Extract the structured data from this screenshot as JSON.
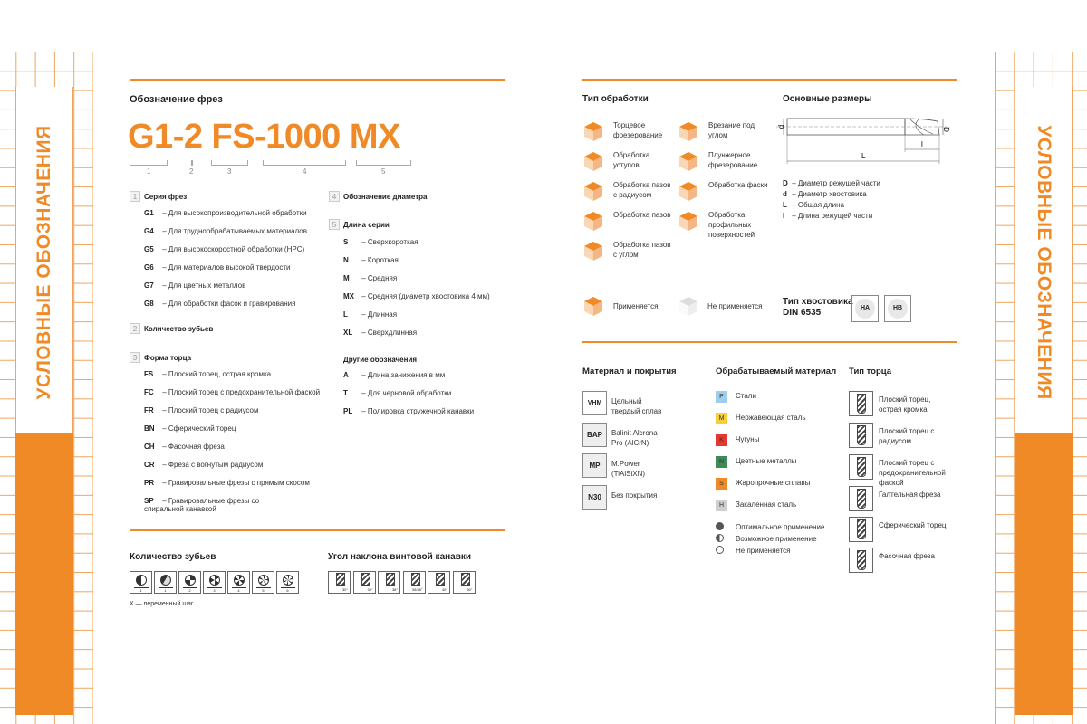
{
  "side_title": "УСЛОВНЫЕ ОБОЗНАЧЕНИЯ",
  "colors": {
    "accent": "#ef8a26",
    "P": "#9fcdec",
    "M": "#f7cf3b",
    "K": "#e23a2e",
    "N": "#3e8a58",
    "S": "#ef8a26",
    "H": "#cfcfcf"
  },
  "designation": {
    "title": "Обозначение фрез",
    "code": "G1-2 FS-1000 MX",
    "parts": [
      "1",
      "2",
      "3",
      "4",
      "5"
    ],
    "s1": {
      "num": "1",
      "title": "Серия фрез",
      "items": [
        [
          "G1",
          "Для высокопроизводительной обработки"
        ],
        [
          "G4",
          "Для труднообрабатываемых материалов"
        ],
        [
          "G5",
          "Для высокоскоростной обработки (HPC)"
        ],
        [
          "G6",
          "Для материалов высокой твердости"
        ],
        [
          "G7",
          "Для цветных металлов"
        ],
        [
          "G8",
          "Для обработки фасок и гравирования"
        ]
      ]
    },
    "s2": {
      "num": "2",
      "title": "Количество зубьев"
    },
    "s3": {
      "num": "3",
      "title": "Форма торца",
      "items": [
        [
          "FS",
          "Плоский торец, острая кромка"
        ],
        [
          "FC",
          "Плоский торец с предохранительной фаской"
        ],
        [
          "FR",
          "Плоский торец с радиусом"
        ],
        [
          "BN",
          "Сферический торец"
        ],
        [
          "CH",
          "Фасочная фреза"
        ],
        [
          "CR",
          "Фреза с вогнутым радиусом"
        ],
        [
          "PR",
          "Гравировальные фрезы с прямым скосом"
        ],
        [
          "SP",
          "Гравировальные фрезы со спиральной канавкой"
        ]
      ]
    },
    "s4": {
      "num": "4",
      "title": "Обозначение диаметра"
    },
    "s5": {
      "num": "5",
      "title": "Длина серии",
      "items": [
        [
          "S",
          "Сверхкороткая"
        ],
        [
          "N",
          "Короткая"
        ],
        [
          "M",
          "Средняя"
        ],
        [
          "MX",
          "Средняя (диаметр хвостовика 4 мм)"
        ],
        [
          "L",
          "Длинная"
        ],
        [
          "XL",
          "Сверхдлинная"
        ]
      ]
    },
    "other": {
      "title": "Другие обозначения",
      "items": [
        [
          "A",
          "Длина занижения в мм"
        ],
        [
          "T",
          "Для черновой обработки"
        ],
        [
          "PL",
          "Полировка стружечной канавки"
        ]
      ]
    }
  },
  "teeth": {
    "title": "Количество зубьев",
    "labels": [
      "1",
      "1",
      "2",
      "3",
      "4",
      "5",
      "6"
    ],
    "note": "X — переменный шаг"
  },
  "helix": {
    "title": "Угол наклона винтовой канавки",
    "labels": [
      "30°",
      "35°",
      "38°",
      "35/38°",
      "40°",
      "50°"
    ]
  },
  "machining": {
    "title": "Тип обработки",
    "items": [
      "Торцевое фрезерование",
      "Обработка уступов",
      "Обработка пазов с радиусом",
      "Обработка пазов",
      "Обработка пазов с углом",
      "Врезание под углом",
      "Плунжерное фрезерование",
      "Обработка фаски",
      "Обработка профильных поверхностей"
    ],
    "applied": "Применяется",
    "not_applied": "Не применяется"
  },
  "dimensions": {
    "title": "Основные размеры",
    "labels": {
      "d": "d",
      "D": "D",
      "l": "l",
      "L": "L"
    },
    "items": [
      [
        "D",
        "Диаметр режущей части"
      ],
      [
        "d",
        "Диаметр хвостовика"
      ],
      [
        "L",
        "Общая длина"
      ],
      [
        "l",
        "Длина режущей части"
      ]
    ]
  },
  "shank": {
    "title1": "Тип хвостовика",
    "title2": "DIN 6535",
    "types": [
      "HA",
      "HB"
    ]
  },
  "material": {
    "title": "Материал и покрытия",
    "items": [
      [
        "VHM",
        "Цельный твердый сплав"
      ],
      [
        "BAP",
        "Balinit Alcrona Pro (AlCrN)"
      ],
      [
        "MP",
        "M.Power (TiAlSiXN)"
      ],
      [
        "N30",
        "Без покрытия"
      ]
    ]
  },
  "workpiece": {
    "title": "Обрабатываемый материал",
    "items": [
      [
        "P",
        "Стали"
      ],
      [
        "M",
        "Нержавеющая сталь"
      ],
      [
        "K",
        "Чугуны"
      ],
      [
        "N",
        "Цветные металлы"
      ],
      [
        "S",
        "Жаропрочные сплавы"
      ],
      [
        "H",
        "Закаленная сталь"
      ]
    ],
    "usage": [
      "Оптимальное применение",
      "Возможное применение",
      "Не применяется"
    ]
  },
  "end_type": {
    "title": "Тип торца",
    "items": [
      "Плоский торец, острая кромка",
      "Плоский торец с радиусом",
      "Плоский торец с предохранительной фаской",
      "Галтельная фреза",
      "Сферический торец",
      "Фасочная фреза"
    ]
  }
}
